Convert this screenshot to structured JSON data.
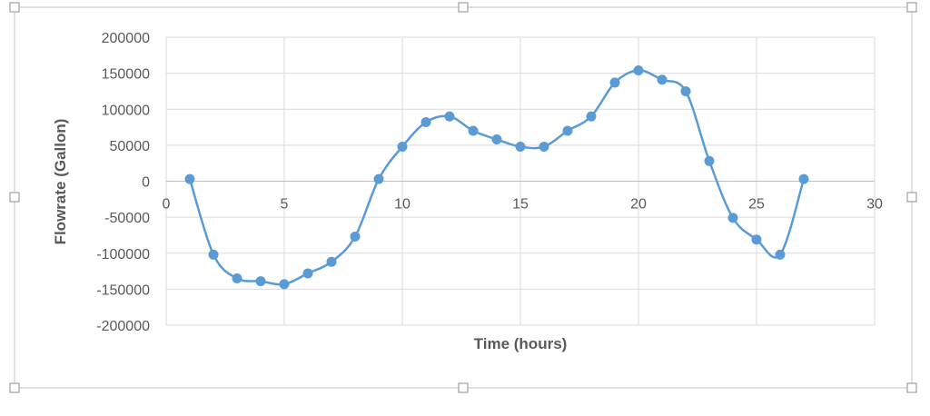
{
  "chart_data": {
    "type": "scatter",
    "title": "",
    "xlabel": "Time (hours)",
    "ylabel": "Flowrate (Gallon)",
    "xlim": [
      0,
      30
    ],
    "ylim": [
      -200000,
      200000
    ],
    "x_ticks": [
      "0",
      "5",
      "10",
      "15",
      "20",
      "25",
      "30"
    ],
    "y_ticks": [
      "200000",
      "150000",
      "100000",
      "50000",
      "0",
      "-50000",
      "-100000",
      "-150000",
      "-200000"
    ],
    "grid": true,
    "legend": "none",
    "line_style": "smooth",
    "series": [
      {
        "color": "#5b9bd5",
        "points": [
          [
            1,
            3000
          ],
          [
            2,
            -102000
          ],
          [
            3,
            -135000
          ],
          [
            4,
            -139000
          ],
          [
            5,
            -143000
          ],
          [
            6,
            -128000
          ],
          [
            7,
            -112000
          ],
          [
            8,
            -77000
          ],
          [
            9,
            3000
          ],
          [
            10,
            48000
          ],
          [
            11,
            82000
          ],
          [
            12,
            90000
          ],
          [
            13,
            70000
          ],
          [
            14,
            58000
          ],
          [
            15,
            48000
          ],
          [
            16,
            48000
          ],
          [
            17,
            70000
          ],
          [
            18,
            90000
          ],
          [
            19,
            137000
          ],
          [
            20,
            154000
          ],
          [
            21,
            141000
          ],
          [
            22,
            125000
          ],
          [
            23,
            28000
          ],
          [
            24,
            -51000
          ],
          [
            25,
            -81000
          ],
          [
            26,
            -102000
          ],
          [
            27,
            3000
          ]
        ]
      }
    ]
  }
}
